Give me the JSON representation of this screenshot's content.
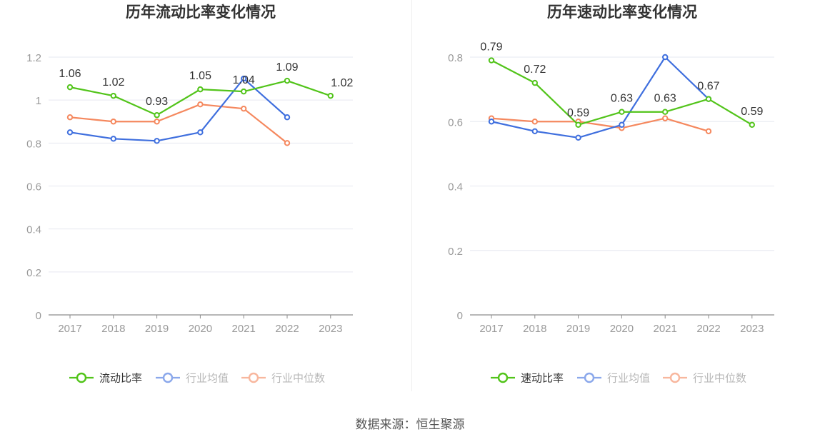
{
  "colors": {
    "primary": "#52c41a",
    "industry_avg": "#3f6fde",
    "industry_median": "#f5885e"
  },
  "source": "数据来源：恒生聚源",
  "chart_data": [
    {
      "type": "line",
      "title": "历年流动比率变化情况",
      "categories": [
        "2017",
        "2018",
        "2019",
        "2020",
        "2021",
        "2022",
        "2023"
      ],
      "ylim": [
        0,
        1.2
      ],
      "yticks": [
        "0",
        "0.2",
        "0.4",
        "0.6",
        "0.8",
        "1",
        "1.2"
      ],
      "grid": true,
      "legend_position": "bottom",
      "series": [
        {
          "name": "流动比率",
          "values": [
            1.06,
            1.02,
            0.93,
            1.05,
            1.04,
            1.09,
            1.02
          ],
          "labels": [
            "1.06",
            "1.02",
            "0.93",
            "1.05",
            "1.04",
            "1.09",
            "1.02"
          ],
          "color": "#52c41a"
        },
        {
          "name": "行业均值",
          "values": [
            0.85,
            0.82,
            0.81,
            0.85,
            1.1,
            0.92,
            null
          ],
          "color": "#3f6fde"
        },
        {
          "name": "行业中位数",
          "values": [
            0.92,
            0.9,
            0.9,
            0.98,
            0.96,
            0.8,
            null
          ],
          "color": "#f5885e"
        }
      ]
    },
    {
      "type": "line",
      "title": "历年速动比率变化情况",
      "categories": [
        "2017",
        "2018",
        "2019",
        "2020",
        "2021",
        "2022",
        "2023"
      ],
      "ylim": [
        0,
        0.8
      ],
      "yticks": [
        "0",
        "0.2",
        "0.4",
        "0.6",
        "0.8"
      ],
      "grid": true,
      "legend_position": "bottom",
      "series": [
        {
          "name": "速动比率",
          "values": [
            0.79,
            0.72,
            0.59,
            0.63,
            0.63,
            0.67,
            0.59
          ],
          "labels": [
            "0.79",
            "0.72",
            "0.59",
            "0.63",
            "0.63",
            "0.67",
            "0.59"
          ],
          "color": "#52c41a"
        },
        {
          "name": "行业均值",
          "values": [
            0.6,
            0.57,
            0.55,
            0.59,
            0.8,
            0.67,
            null
          ],
          "color": "#3f6fde"
        },
        {
          "name": "行业中位数",
          "values": [
            0.61,
            0.6,
            0.6,
            0.58,
            0.61,
            0.57,
            null
          ],
          "color": "#f5885e"
        }
      ]
    }
  ]
}
